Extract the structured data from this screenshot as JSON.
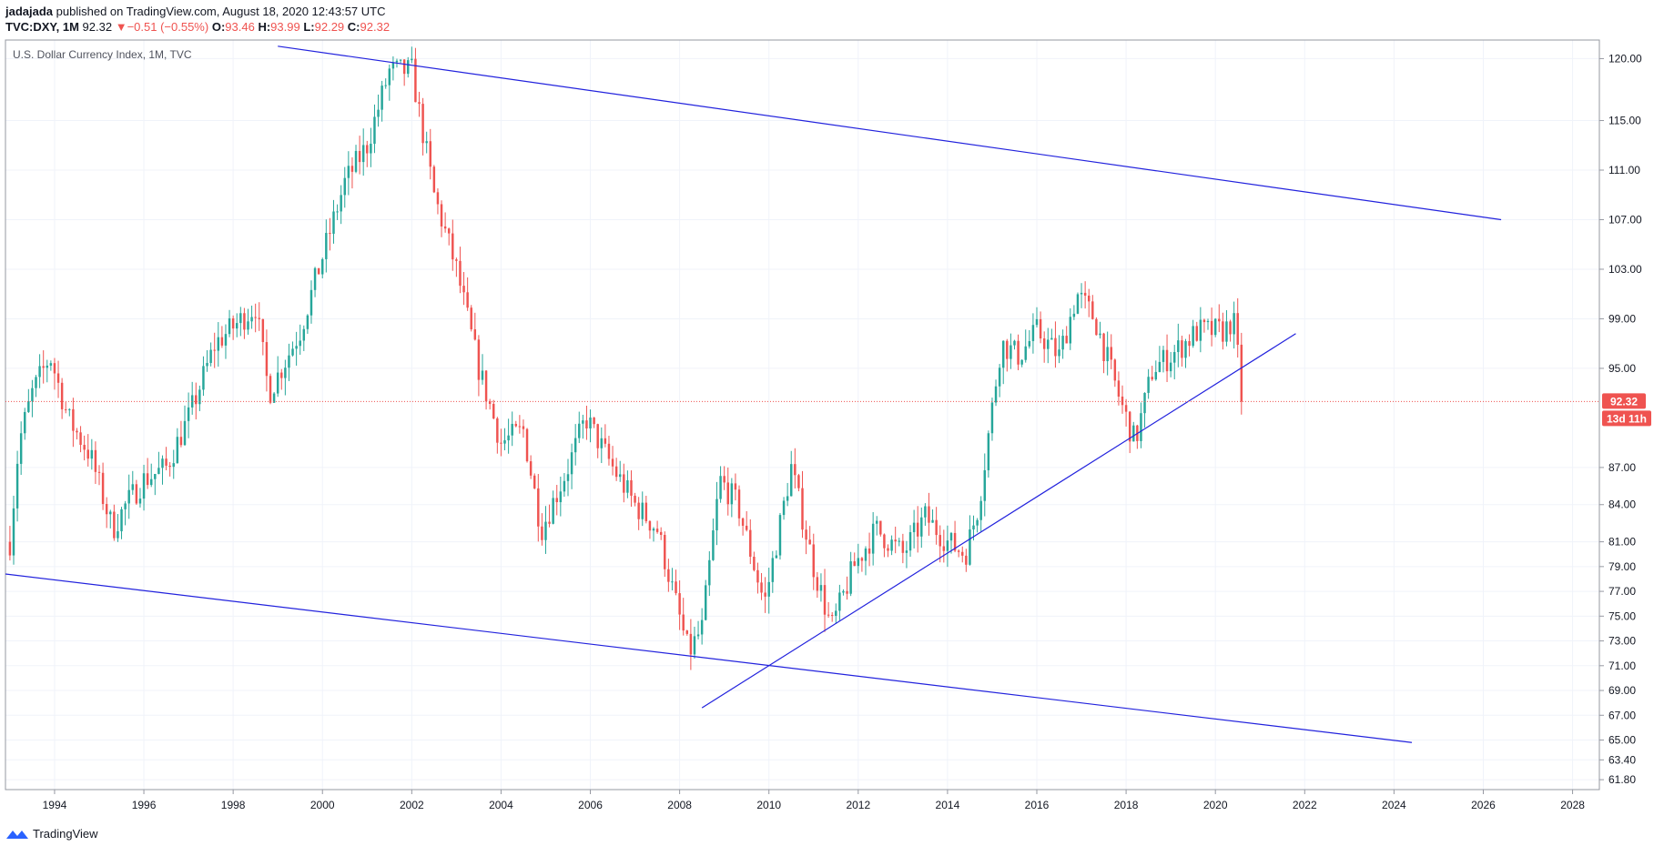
{
  "header": {
    "author": "jadajada",
    "published": "published on TradingView.com, August 18, 2020 12:43:57 UTC",
    "symbol": "TVC:DXY, 1M",
    "last": "92.32",
    "change_arrow": "▼",
    "change": "−0.51 (−0.55%)",
    "o_label": "O:",
    "o_value": "93.46",
    "h_label": "H:",
    "h_value": "93.99",
    "l_label": "L:",
    "l_value": "92.29",
    "c_label": "C:",
    "c_value": "92.32"
  },
  "footer": {
    "logo_text": "TradingView",
    "logo_icon": "tradingview-logo-icon"
  },
  "colors": {
    "up": "#26a69a",
    "down": "#ef5350",
    "trendline": "#2222dd",
    "grid": "#f0f3fa",
    "price_line": "#ef5350"
  },
  "chart_data": {
    "type": "candlestick",
    "title": "U.S. Dollar Currency Index, 1M, TVC",
    "xlabel": "",
    "ylabel": "",
    "x_range": [
      1992.9,
      2028.6
    ],
    "ylim": [
      61.0,
      121.5
    ],
    "y_ticks": [
      "120.00",
      "115.00",
      "111.00",
      "107.00",
      "103.00",
      "99.00",
      "95.00",
      "87.00",
      "84.00",
      "81.00",
      "79.00",
      "77.00",
      "75.00",
      "73.00",
      "71.00",
      "69.00",
      "67.00",
      "65.00",
      "63.40",
      "61.80"
    ],
    "x_ticks": [
      "1994",
      "1996",
      "1998",
      "2000",
      "2002",
      "2004",
      "2006",
      "2008",
      "2010",
      "2012",
      "2014",
      "2016",
      "2018",
      "2020",
      "2022",
      "2024",
      "2026",
      "2028"
    ],
    "last_price": 92.32,
    "last_price_label": "92.32",
    "countdown_label": "13d 11h",
    "grid": true,
    "anchors": [
      [
        1993.0,
        81
      ],
      [
        1993.2,
        89
      ],
      [
        1993.5,
        93
      ],
      [
        1993.9,
        96
      ],
      [
        1994.3,
        91
      ],
      [
        1994.8,
        88
      ],
      [
        1995.3,
        82
      ],
      [
        1995.6,
        84
      ],
      [
        1996.0,
        86
      ],
      [
        1996.5,
        87
      ],
      [
        1997.0,
        91
      ],
      [
        1997.6,
        97
      ],
      [
        1998.5,
        100
      ],
      [
        1998.8,
        93
      ],
      [
        1999.5,
        98
      ],
      [
        2000.5,
        110
      ],
      [
        2001.0,
        113
      ],
      [
        2001.5,
        119
      ],
      [
        2002.0,
        119
      ],
      [
        2002.5,
        109
      ],
      [
        2003.0,
        103
      ],
      [
        2003.5,
        95
      ],
      [
        2004.0,
        89
      ],
      [
        2004.5,
        90
      ],
      [
        2004.9,
        82
      ],
      [
        2005.5,
        87
      ],
      [
        2005.9,
        91
      ],
      [
        2006.5,
        87
      ],
      [
        2007.0,
        84
      ],
      [
        2007.5,
        82
      ],
      [
        2008.2,
        72
      ],
      [
        2008.5,
        74
      ],
      [
        2008.9,
        86
      ],
      [
        2009.3,
        84
      ],
      [
        2009.9,
        76
      ],
      [
        2010.5,
        87
      ],
      [
        2011.0,
        79
      ],
      [
        2011.4,
        74
      ],
      [
        2011.9,
        79
      ],
      [
        2012.4,
        82
      ],
      [
        2013.0,
        80
      ],
      [
        2013.5,
        83
      ],
      [
        2014.0,
        81
      ],
      [
        2014.4,
        80
      ],
      [
        2014.7,
        84
      ],
      [
        2015.2,
        97
      ],
      [
        2015.6,
        96
      ],
      [
        2016.0,
        98
      ],
      [
        2016.5,
        96
      ],
      [
        2016.9,
        101
      ],
      [
        2017.3,
        99
      ],
      [
        2017.9,
        92
      ],
      [
        2018.2,
        89
      ],
      [
        2018.6,
        95
      ],
      [
        2019.0,
        96
      ],
      [
        2019.6,
        98
      ],
      [
        2020.2,
        98
      ],
      [
        2020.4,
        99
      ],
      [
        2020.6,
        93
      ],
      [
        2020.62,
        92.32
      ]
    ],
    "trendlines": [
      {
        "name": "",
        "x1": 1999.0,
        "y1": 121.0,
        "x2": 2026.4,
        "y2": 107.0
      },
      {
        "name": "",
        "x1": 1992.9,
        "y1": 78.4,
        "x2": 2024.4,
        "y2": 64.8
      },
      {
        "name": "",
        "x1": 2008.5,
        "y1": 67.6,
        "x2": 2021.8,
        "y2": 97.8
      }
    ]
  }
}
